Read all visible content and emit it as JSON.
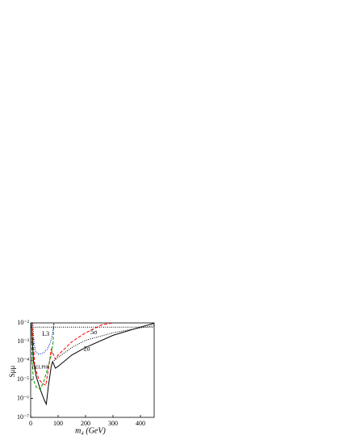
{
  "chart_data": {
    "type": "line",
    "x_label": "m₄ (GeV)",
    "y_label": "Sμμ",
    "xlim": [
      0,
      450
    ],
    "xticks": [
      0,
      100,
      200,
      300,
      400
    ],
    "ylim": [
      1e-07,
      0.01
    ],
    "ylog": true,
    "yticks": [
      {
        "value": 1e-07,
        "label": "10⁻⁷"
      },
      {
        "value": 1e-06,
        "label": "10⁻⁶"
      },
      {
        "value": 1e-05,
        "label": "10⁻⁵"
      },
      {
        "value": 0.0001,
        "label": "10⁻⁴"
      },
      {
        "value": 0.001,
        "label": "10⁻³"
      },
      {
        "value": 0.01,
        "label": "10⁻²"
      }
    ],
    "annotations": [
      {
        "text": "L3",
        "x": 55,
        "y": 0.0025
      },
      {
        "text": "5σ",
        "x": 230,
        "y": 0.003
      },
      {
        "text": "2σ",
        "x": 205,
        "y": 0.0004
      },
      {
        "text": "DELPHI",
        "x": 36,
        "y": 4.5e-05
      }
    ],
    "series": [
      {
        "color": "#000000",
        "dash": "solid",
        "x": [
          3,
          10,
          20,
          35,
          50,
          57,
          65,
          75,
          80,
          90,
          100,
          150,
          200,
          300,
          400,
          450
        ],
        "values": [
          0.01,
          0.0001,
          1.5e-05,
          3e-06,
          8e-07,
          5e-07,
          5e-06,
          5e-05,
          9e-05,
          4e-05,
          5e-05,
          0.0002,
          0.0005,
          0.0022,
          0.006,
          0.0095
        ]
      },
      {
        "color": "#ff0000",
        "dash": "dashed",
        "x": [
          5,
          15,
          30,
          45,
          55,
          65,
          75,
          90,
          100,
          150,
          200,
          260,
          300
        ],
        "values": [
          0.01,
          5e-05,
          1e-05,
          6e-06,
          5e-06,
          4e-05,
          0.0004,
          0.00012,
          0.0002,
          0.001,
          0.003,
          0.008,
          0.01
        ]
      },
      {
        "color": "#00a000",
        "dash": "dashed",
        "x": [
          3,
          5,
          10,
          20,
          35,
          50,
          65,
          75,
          82,
          84
        ],
        "values": [
          0.01,
          0.0001,
          1e-05,
          4e-06,
          3e-06,
          1e-05,
          6e-05,
          0.0002,
          0.001,
          0.01
        ]
      },
      {
        "color": "#0000cc",
        "dash": "dotted",
        "x": [
          8,
          12,
          18,
          30,
          45,
          60,
          72,
          80,
          84,
          86
        ],
        "values": [
          0.01,
          0.001,
          0.0003,
          0.00022,
          0.00025,
          0.0004,
          0.0009,
          0.003,
          0.007,
          0.01
        ]
      },
      {
        "color": "#000000",
        "dash": "dotted",
        "x": [
          0,
          450
        ],
        "values": [
          0.006,
          0.006
        ]
      },
      {
        "color": "#000000",
        "dash": "dotted",
        "x": [
          85,
          100,
          150,
          200,
          300,
          400,
          450
        ],
        "values": [
          0.0001,
          0.00015,
          0.0005,
          0.0012,
          0.003,
          0.0055,
          0.007
        ]
      }
    ]
  }
}
